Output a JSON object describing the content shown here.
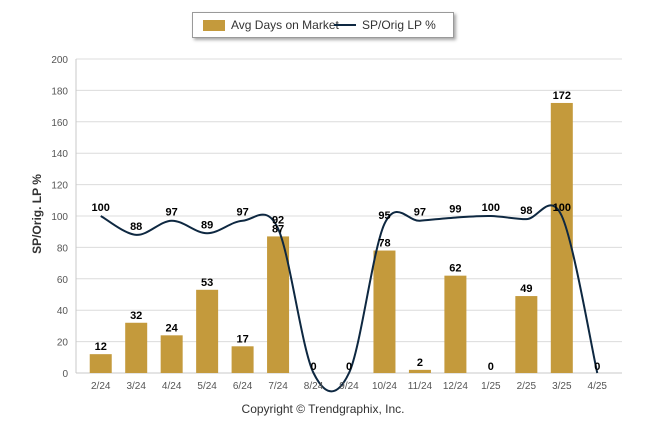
{
  "chart_data": {
    "type": "bar",
    "categories": [
      "2/24",
      "3/24",
      "4/24",
      "5/24",
      "6/24",
      "7/24",
      "8/24",
      "9/24",
      "10/24",
      "11/24",
      "12/24",
      "1/25",
      "2/25",
      "3/25",
      "4/25"
    ],
    "series": [
      {
        "name": "Avg Days on Market",
        "type": "bar",
        "color": "#C49A3C",
        "values": [
          12,
          32,
          24,
          53,
          17,
          87,
          0,
          0,
          78,
          2,
          62,
          0,
          49,
          172,
          0
        ]
      },
      {
        "name": "SP/Orig LP %",
        "type": "line",
        "color": "#0E2841",
        "values": [
          100,
          88,
          97,
          89,
          97,
          92,
          0,
          0,
          95,
          97,
          99,
          100,
          98,
          100,
          0
        ]
      }
    ],
    "ylabel": "SP/Orig. LP %",
    "ylim": [
      0,
      200
    ],
    "yticks": [
      0,
      20,
      40,
      60,
      80,
      100,
      120,
      140,
      160,
      180,
      200
    ],
    "grid": true,
    "legend_position": "top"
  },
  "footer": {
    "copyright": "Copyright © Trendgraphix, Inc."
  }
}
